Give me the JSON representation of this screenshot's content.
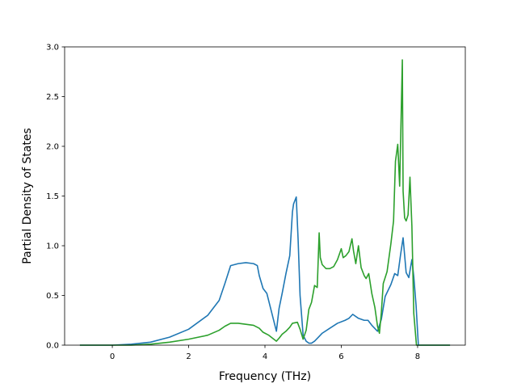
{
  "chart_data": {
    "type": "line",
    "title": "",
    "xlabel": "Frequency (THz)",
    "ylabel": "Partial Density of States",
    "xlim": [
      -1.25,
      9.25
    ],
    "ylim": [
      0,
      3.0
    ],
    "xticks": [
      0,
      2,
      4,
      6,
      8
    ],
    "xtick_labels": [
      "0",
      "2",
      "4",
      "6",
      "8"
    ],
    "yticks": [
      0.0,
      0.5,
      1.0,
      1.5,
      2.0,
      2.5,
      3.0
    ],
    "ytick_labels": [
      "0.0",
      "0.5",
      "1.0",
      "1.5",
      "2.0",
      "2.5",
      "3.0"
    ],
    "grid": false,
    "legend": false,
    "series": [
      {
        "color": "#1f77b4",
        "x": [
          -0.85,
          0.0,
          0.5,
          1.0,
          1.5,
          2.0,
          2.5,
          2.8,
          2.95,
          3.1,
          3.3,
          3.5,
          3.7,
          3.8,
          3.85,
          3.95,
          4.05,
          4.3,
          4.37,
          4.45,
          4.55,
          4.65,
          4.72,
          4.75,
          4.82,
          4.87,
          4.92,
          5.0,
          5.08,
          5.15,
          5.22,
          5.3,
          5.4,
          5.5,
          5.7,
          5.9,
          6.1,
          6.2,
          6.3,
          6.45,
          6.6,
          6.7,
          6.8,
          6.95,
          7.05,
          7.15,
          7.3,
          7.4,
          7.48,
          7.55,
          7.62,
          7.7,
          7.77,
          7.85,
          7.9,
          7.96,
          8.02,
          8.85
        ],
        "y": [
          0.0,
          0.0,
          0.01,
          0.03,
          0.08,
          0.16,
          0.3,
          0.45,
          0.62,
          0.8,
          0.82,
          0.83,
          0.82,
          0.8,
          0.7,
          0.57,
          0.52,
          0.14,
          0.37,
          0.52,
          0.72,
          0.9,
          1.34,
          1.42,
          1.49,
          1.05,
          0.5,
          0.1,
          0.04,
          0.02,
          0.02,
          0.04,
          0.08,
          0.12,
          0.17,
          0.22,
          0.25,
          0.27,
          0.31,
          0.27,
          0.25,
          0.25,
          0.2,
          0.14,
          0.26,
          0.49,
          0.61,
          0.72,
          0.7,
          0.9,
          1.08,
          0.73,
          0.68,
          0.86,
          0.69,
          0.4,
          0.0,
          0.0
        ]
      },
      {
        "color": "#2ca02c",
        "x": [
          -0.85,
          0.0,
          0.5,
          1.0,
          1.5,
          2.0,
          2.5,
          2.8,
          2.95,
          3.1,
          3.3,
          3.5,
          3.7,
          3.85,
          3.95,
          4.1,
          4.3,
          4.37,
          4.45,
          4.55,
          4.65,
          4.72,
          4.85,
          4.92,
          5.0,
          5.08,
          5.15,
          5.22,
          5.3,
          5.37,
          5.42,
          5.45,
          5.5,
          5.6,
          5.7,
          5.8,
          5.9,
          6.0,
          6.05,
          6.12,
          6.2,
          6.28,
          6.32,
          6.38,
          6.45,
          6.52,
          6.6,
          6.65,
          6.72,
          6.8,
          6.88,
          6.95,
          7.0,
          7.05,
          7.1,
          7.2,
          7.3,
          7.37,
          7.42,
          7.48,
          7.53,
          7.56,
          7.6,
          7.62,
          7.66,
          7.7,
          7.75,
          7.8,
          7.85,
          7.9,
          7.97,
          8.03,
          8.85
        ],
        "y": [
          0.0,
          0.0,
          0.0,
          0.01,
          0.03,
          0.06,
          0.1,
          0.15,
          0.19,
          0.22,
          0.22,
          0.21,
          0.2,
          0.17,
          0.13,
          0.1,
          0.04,
          0.07,
          0.11,
          0.14,
          0.18,
          0.22,
          0.23,
          0.16,
          0.06,
          0.15,
          0.36,
          0.43,
          0.6,
          0.58,
          1.13,
          0.88,
          0.81,
          0.77,
          0.77,
          0.79,
          0.86,
          0.97,
          0.88,
          0.9,
          0.94,
          1.07,
          0.95,
          0.82,
          1.0,
          0.78,
          0.7,
          0.67,
          0.72,
          0.52,
          0.38,
          0.19,
          0.12,
          0.33,
          0.62,
          0.74,
          1.02,
          1.25,
          1.85,
          2.02,
          1.6,
          2.15,
          2.87,
          1.55,
          1.28,
          1.25,
          1.31,
          1.69,
          1.2,
          0.32,
          0.0,
          0.0,
          0.0
        ]
      }
    ]
  }
}
